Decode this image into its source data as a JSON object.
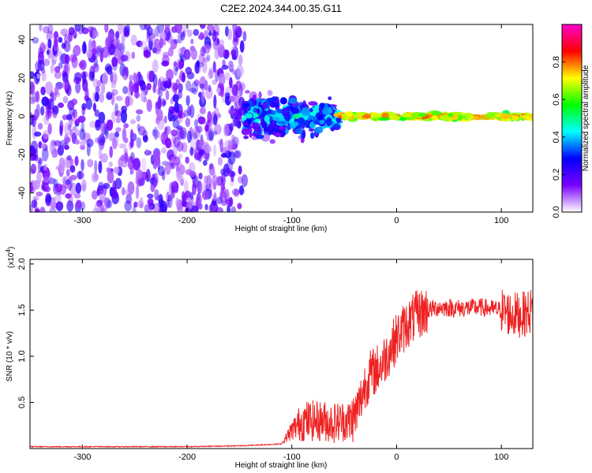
{
  "title": "C2E2.2024.344.00.35.G11",
  "chart_data": [
    {
      "type": "heatmap",
      "xlabel": "Height of straight line (km)",
      "ylabel": "Frequency (Hz)",
      "xlim": [
        -350,
        130
      ],
      "ylim": [
        -50,
        48
      ],
      "xticks": [
        -300,
        -200,
        -100,
        0,
        100
      ],
      "yticks": [
        -40,
        -20,
        0,
        20,
        40
      ],
      "colorbar": {
        "label": "Normalized spectral amplitude",
        "range": [
          0,
          1
        ],
        "ticks": [
          "0.0",
          "0.2",
          "0.4",
          "0.6",
          "0.8"
        ],
        "tick_values": [
          0.0,
          0.2,
          0.4,
          0.6,
          0.8
        ],
        "colors": [
          "#ffffff",
          "#7a00ff",
          "#0000ff",
          "#00ffff",
          "#00ff00",
          "#ffff00",
          "#ff0000",
          "#ff00cc"
        ]
      },
      "regions": [
        {
          "x": [
            -350,
            -145
          ],
          "freq_spread": 48,
          "amplitude": 0.05
        },
        {
          "x": [
            -145,
            -55
          ],
          "freq_spread": 18,
          "amplitude": 0.25
        },
        {
          "x": [
            -55,
            130
          ],
          "freq_spread": 3,
          "amplitude": 0.75
        }
      ]
    },
    {
      "type": "line",
      "xlabel": "Height of straight line (km)",
      "ylabel": "SNR (10 * v/v)",
      "y_multiplier": "(x10",
      "y_multiplier_exp": "4",
      "y_multiplier_close": ")",
      "xlim": [
        -350,
        130
      ],
      "ylim": [
        0,
        2.05
      ],
      "xticks": [
        -300,
        -200,
        -100,
        0,
        100
      ],
      "yticks": [
        "0.5",
        "1.0",
        "1.5",
        "2.0"
      ],
      "ytick_values": [
        0.5,
        1.0,
        1.5,
        2.0
      ],
      "color": "#ee2222",
      "x": [
        -350,
        -300,
        -250,
        -200,
        -150,
        -110,
        -100,
        -90,
        -80,
        -70,
        -60,
        -50,
        -45,
        -40,
        -35,
        -30,
        -25,
        -20,
        -15,
        -10,
        -5,
        0,
        10,
        20,
        30,
        40,
        60,
        80,
        100,
        110,
        120,
        130
      ],
      "y": [
        0.02,
        0.02,
        0.02,
        0.02,
        0.03,
        0.05,
        0.2,
        0.3,
        0.3,
        0.3,
        0.28,
        0.3,
        0.3,
        0.35,
        0.5,
        0.7,
        0.8,
        0.85,
        0.9,
        1.0,
        1.1,
        1.2,
        1.35,
        1.45,
        1.5,
        1.53,
        1.52,
        1.53,
        1.5,
        1.45,
        1.45,
        1.5
      ]
    }
  ]
}
